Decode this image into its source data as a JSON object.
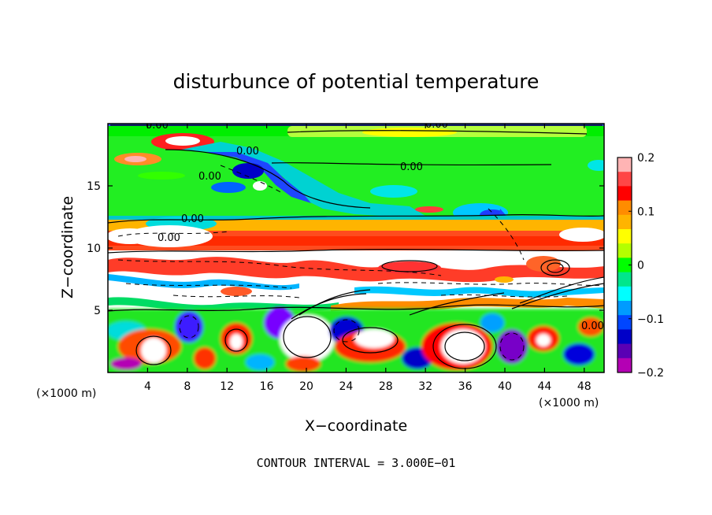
{
  "chart_data": {
    "type": "heatmap",
    "title": "disturbunce of potential temperature",
    "xlabel": "X−coordinate",
    "ylabel": "Z−coordinate",
    "x_unit_left": "(×1000 m)",
    "x_unit_right": "(×1000 m)",
    "note": "CONTOUR INTERVAL = 3.000E−01",
    "xlim": [
      0,
      50
    ],
    "ylim": [
      0,
      20
    ],
    "x_ticks": [
      4,
      8,
      12,
      16,
      20,
      24,
      28,
      32,
      36,
      40,
      44,
      48
    ],
    "x_tick_labels": [
      "4",
      "8",
      "12",
      "16",
      "20",
      "24",
      "28",
      "32",
      "36",
      "40",
      "44",
      "48"
    ],
    "y_ticks": [
      5,
      10,
      15
    ],
    "y_tick_labels": [
      "5",
      "10",
      "15"
    ],
    "contour_labels": [
      "0.00",
      "0.00",
      "0.00",
      "0.00",
      "0.00",
      "0.00",
      "0.00",
      "0.00"
    ],
    "colorbar": {
      "min": -0.2,
      "max": 0.2,
      "ticks": [
        0.2,
        0.1,
        0,
        -0.1,
        -0.2
      ],
      "tick_labels": [
        "0.2",
        "0.1",
        "0",
        "−0.1",
        "−0.2"
      ],
      "colors_top_to_bottom": [
        "#ffb4b4",
        "#ff4646",
        "#ff0000",
        "#ff8c00",
        "#ffb400",
        "#ffff00",
        "#b4ff00",
        "#00ff00",
        "#00e68c",
        "#00ffff",
        "#009bff",
        "#0046ff",
        "#0000c8",
        "#5a00b4",
        "#b400b4"
      ]
    },
    "bands": [
      {
        "z_range": [
          18.5,
          20
        ],
        "note": "near-zero green"
      },
      {
        "z_range": [
          13,
          18.5
        ],
        "note": "weak positive green with negative blue patches"
      },
      {
        "z_range": [
          10.5,
          13
        ],
        "note": "positive orange-red band"
      },
      {
        "z_range": [
          5.5,
          10.5
        ],
        "note": "strong disturbance, saturated white with dense contours"
      },
      {
        "z_range": [
          0,
          5.5
        ],
        "note": "mixed positive and negative cells"
      }
    ]
  }
}
